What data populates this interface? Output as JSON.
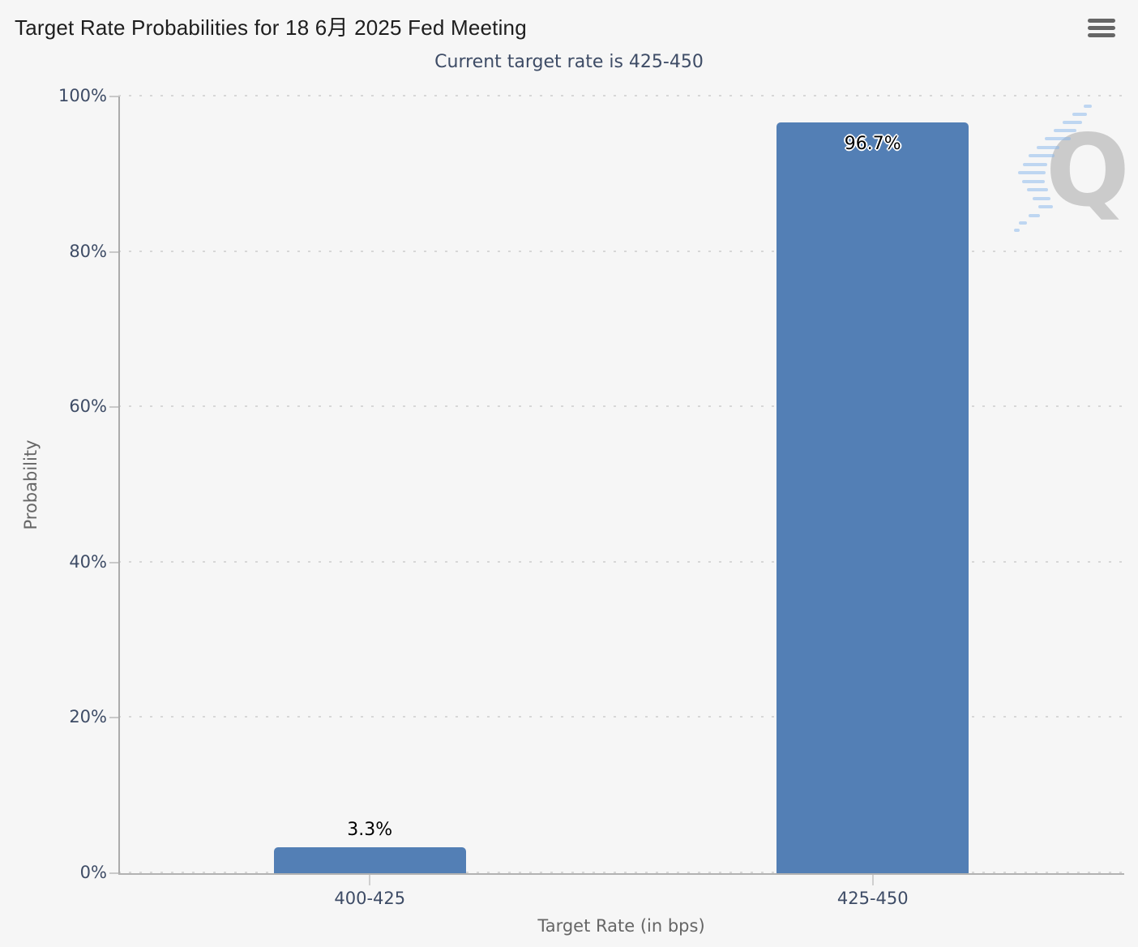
{
  "header": {
    "title": "Target Rate Probabilities for 18 6月 2025 Fed Meeting",
    "menu_icon": "hamburger-icon"
  },
  "chart_data": {
    "type": "bar",
    "title": "Target Rate Probabilities for 18 6月 2025 Fed Meeting",
    "subtitle": "Current target rate is 425-450",
    "categories": [
      "400-425",
      "425-450"
    ],
    "values": [
      3.3,
      96.7
    ],
    "value_labels": [
      "3.3%",
      "96.7%"
    ],
    "xlabel": "Target Rate (in bps)",
    "ylabel": "Probability",
    "ylim": [
      0,
      100
    ],
    "ytick_labels": [
      "0%",
      "20%",
      "40%",
      "60%",
      "80%",
      "100%"
    ],
    "grid": "dotted-horizontal",
    "legend": "none",
    "bar_color": "#537fb5",
    "label_color": "#3e4c66",
    "axis_title_color": "#666666",
    "watermark_letter": "Q"
  }
}
